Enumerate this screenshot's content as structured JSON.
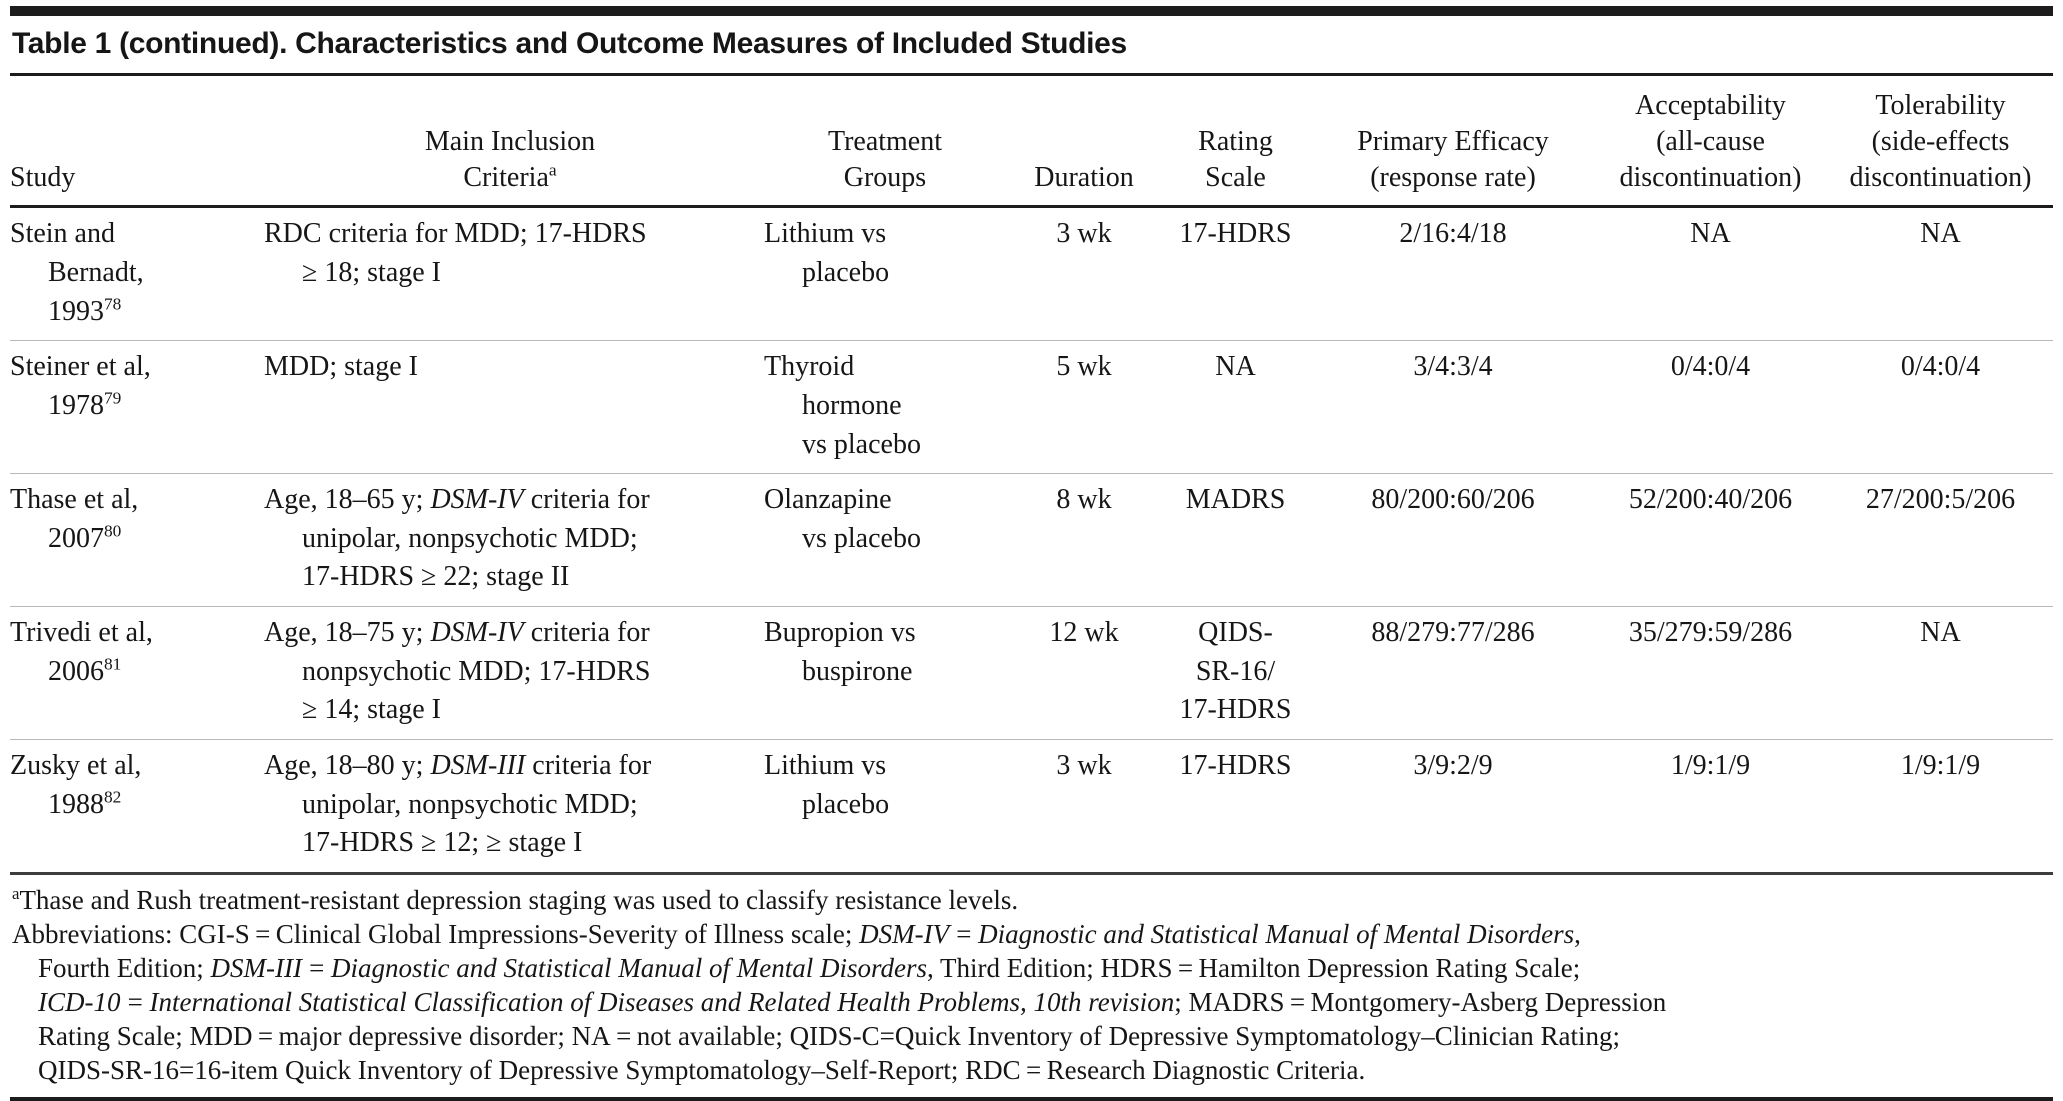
{
  "title": "Table 1 (continued). Characteristics and Outcome Measures of Included Studies",
  "header": {
    "study": "Study",
    "criteria_1": "Main Inclusion",
    "criteria_2": "Criteria",
    "criteria_sup": "a",
    "treatment_1": "Treatment",
    "treatment_2": "Groups",
    "duration": "Duration",
    "rating_1": "Rating",
    "rating_2": "Scale",
    "efficacy_1": "Primary Efficacy",
    "efficacy_2": "(response rate)",
    "accept_1": "Acceptability",
    "accept_2": "(all-cause",
    "accept_3": "discontinuation)",
    "toler_1": "Tolerability",
    "toler_2": "(side-effects",
    "toler_3": "discontinuation)"
  },
  "rows": [
    {
      "study": [
        "Stein and",
        "Bernadt,",
        "1993"
      ],
      "study_sup": "78",
      "criteria": [
        [
          {
            "t": "RDC criteria for MDD; 17-HDRS"
          }
        ],
        [
          {
            "t": "≥ 18; stage I"
          }
        ]
      ],
      "treatment": [
        "Lithium vs",
        "placebo"
      ],
      "duration": "3 wk",
      "rating": [
        "17-HDRS"
      ],
      "efficacy": "2/16:4/18",
      "acceptability": "NA",
      "tolerability": "NA"
    },
    {
      "study": [
        "Steiner et al,",
        "1978"
      ],
      "study_sup": "79",
      "criteria": [
        [
          {
            "t": "MDD; stage I"
          }
        ]
      ],
      "treatment": [
        "Thyroid",
        "hormone",
        "vs placebo"
      ],
      "duration": "5 wk",
      "rating": [
        "NA"
      ],
      "efficacy": "3/4:3/4",
      "acceptability": "0/4:0/4",
      "tolerability": "0/4:0/4"
    },
    {
      "study": [
        "Thase et al,",
        "2007"
      ],
      "study_sup": "80",
      "criteria": [
        [
          {
            "t": "Age, 18–65 y; "
          },
          {
            "t": "DSM-IV",
            "i": true
          },
          {
            "t": " criteria for"
          }
        ],
        [
          {
            "t": "unipolar, nonpsychotic MDD;"
          }
        ],
        [
          {
            "t": "17-HDRS ≥ 22; stage II"
          }
        ]
      ],
      "treatment": [
        "Olanzapine",
        "vs placebo"
      ],
      "duration": "8 wk",
      "rating": [
        "MADRS"
      ],
      "efficacy": "80/200:60/206",
      "acceptability": "52/200:40/206",
      "tolerability": "27/200:5/206"
    },
    {
      "study": [
        "Trivedi et al,",
        "2006"
      ],
      "study_sup": "81",
      "criteria": [
        [
          {
            "t": "Age, 18–75 y; "
          },
          {
            "t": "DSM-IV",
            "i": true
          },
          {
            "t": " criteria for"
          }
        ],
        [
          {
            "t": "nonpsychotic MDD; 17-HDRS"
          }
        ],
        [
          {
            "t": "≥ 14; stage I"
          }
        ]
      ],
      "treatment": [
        "Bupropion vs",
        "buspirone"
      ],
      "duration": "12 wk",
      "rating": [
        "QIDS-",
        "SR-16/",
        "17-HDRS"
      ],
      "efficacy": "88/279:77/286",
      "acceptability": "35/279:59/286",
      "tolerability": "NA"
    },
    {
      "study": [
        "Zusky et al,",
        "1988"
      ],
      "study_sup": "82",
      "criteria": [
        [
          {
            "t": "Age, 18–80 y; "
          },
          {
            "t": "DSM-III",
            "i": true
          },
          {
            "t": " criteria for"
          }
        ],
        [
          {
            "t": "unipolar, nonpsychotic MDD;"
          }
        ],
        [
          {
            "t": "17-HDRS ≥ 12; ≥ stage I"
          }
        ]
      ],
      "treatment": [
        "Lithium vs",
        "placebo"
      ],
      "duration": "3 wk",
      "rating": [
        "17-HDRS"
      ],
      "efficacy": "3/9:2/9",
      "acceptability": "1/9:1/9",
      "tolerability": "1/9:1/9"
    }
  ],
  "footnotes": {
    "fn1_sup": "a",
    "fn1": "Thase and Rush treatment-resistant depression staging was used to classify resistance levels.",
    "fn2_a": "Abbreviations: CGI-S = Clinical Global Impressions-Severity of Illness scale; ",
    "fn2_b": "DSM-IV = Diagnostic and Statistical Manual of Mental Disorders",
    "fn2_c": ",",
    "fn3_a": "Fourth Edition; ",
    "fn3_b": "DSM-III = Diagnostic and Statistical Manual of Mental Disorders",
    "fn3_c": ", Third Edition; HDRS = Hamilton Depression Rating Scale;",
    "fn4_a": "ICD-10 = International Statistical Classification of Diseases and Related Health Problems, 10th revision",
    "fn4_b": "; MADRS = Montgomery-Asberg Depression",
    "fn5": "Rating Scale; MDD = major depressive disorder; NA = not available; QIDS-C=Quick Inventory of Depressive Symptomatology–Clinician Rating;",
    "fn6": "QIDS-SR-16=16-item Quick Inventory of Depressive Symptomatology–Self-Report; RDC = Research Diagnostic Criteria."
  }
}
